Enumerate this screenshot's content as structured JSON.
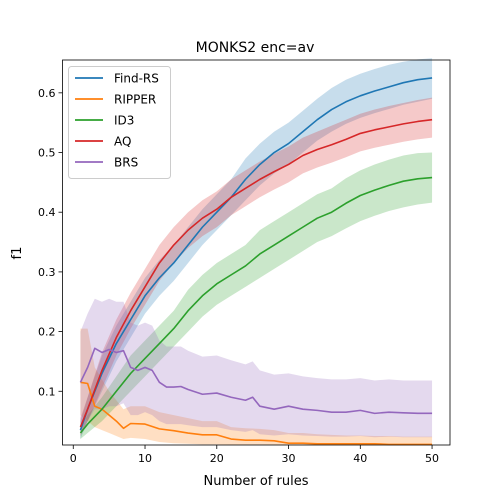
{
  "chart_data": {
    "type": "line",
    "title": "MONKS2 enc=av",
    "xlabel": "Number of rules",
    "ylabel": "f1",
    "xlim": [
      -1.5,
      52.5
    ],
    "ylim": [
      0.01,
      0.655
    ],
    "xticks": [
      0,
      10,
      20,
      30,
      40,
      50
    ],
    "yticks": [
      0.1,
      0.2,
      0.3,
      0.4,
      0.5,
      0.6
    ],
    "xtick_labels": [
      "0",
      "10",
      "20",
      "30",
      "40",
      "50"
    ],
    "ytick_labels": [
      "0.1",
      "0.2",
      "0.3",
      "0.4",
      "0.5",
      "0.6"
    ],
    "legend_position": "top-left",
    "grid": false,
    "band_opacity": 0.25,
    "series": [
      {
        "name": "Find-RS",
        "color": "#1f77b4",
        "x": [
          1,
          2,
          4,
          6,
          8,
          10,
          12,
          14,
          16,
          18,
          20,
          22,
          24,
          26,
          28,
          30,
          32,
          34,
          36,
          38,
          40,
          42,
          44,
          46,
          48,
          50
        ],
        "y": [
          0.035,
          0.07,
          0.13,
          0.18,
          0.22,
          0.26,
          0.29,
          0.315,
          0.345,
          0.375,
          0.4,
          0.425,
          0.455,
          0.48,
          0.5,
          0.515,
          0.535,
          0.555,
          0.572,
          0.585,
          0.595,
          0.603,
          0.61,
          0.617,
          0.622,
          0.625
        ],
        "lower": [
          0.02,
          0.05,
          0.1,
          0.15,
          0.19,
          0.23,
          0.26,
          0.285,
          0.315,
          0.345,
          0.37,
          0.395,
          0.42,
          0.445,
          0.465,
          0.48,
          0.5,
          0.52,
          0.535,
          0.548,
          0.558,
          0.566,
          0.573,
          0.58,
          0.585,
          0.59
        ],
        "upper": [
          0.05,
          0.09,
          0.16,
          0.21,
          0.25,
          0.29,
          0.32,
          0.345,
          0.375,
          0.405,
          0.43,
          0.455,
          0.49,
          0.515,
          0.535,
          0.55,
          0.57,
          0.59,
          0.608,
          0.622,
          0.632,
          0.64,
          0.647,
          0.652,
          0.656,
          0.658
        ]
      },
      {
        "name": "RIPPER",
        "color": "#ff7f0e",
        "x": [
          1,
          2,
          3,
          4,
          5,
          6,
          7,
          8,
          10,
          12,
          14,
          16,
          18,
          20,
          22,
          24,
          26,
          28,
          30,
          32,
          34,
          36,
          38,
          40,
          42,
          44,
          46,
          48,
          50
        ],
        "y": [
          0.115,
          0.113,
          0.075,
          0.07,
          0.06,
          0.05,
          0.038,
          0.046,
          0.045,
          0.037,
          0.034,
          0.03,
          0.027,
          0.027,
          0.02,
          0.018,
          0.018,
          0.017,
          0.013,
          0.013,
          0.012,
          0.012,
          0.012,
          0.012,
          0.012,
          0.011,
          0.011,
          0.011,
          0.011
        ],
        "lower": [
          0.06,
          0.05,
          0.04,
          0.035,
          0.03,
          0.025,
          0.02,
          0.022,
          0.02,
          0.015,
          0.013,
          0.012,
          0.011,
          0.011,
          0.01,
          0.01,
          0.01,
          0.01,
          0.01,
          0.01,
          0.01,
          0.01,
          0.01,
          0.01,
          0.01,
          0.01,
          0.01,
          0.01,
          0.01
        ],
        "upper": [
          0.205,
          0.205,
          0.14,
          0.12,
          0.1,
          0.085,
          0.07,
          0.075,
          0.075,
          0.065,
          0.06,
          0.055,
          0.05,
          0.05,
          0.04,
          0.038,
          0.037,
          0.035,
          0.03,
          0.03,
          0.028,
          0.027,
          0.026,
          0.026,
          0.025,
          0.025,
          0.024,
          0.024,
          0.024
        ]
      },
      {
        "name": "ID3",
        "color": "#2ca02c",
        "x": [
          1,
          2,
          4,
          6,
          8,
          10,
          12,
          14,
          16,
          18,
          20,
          22,
          24,
          26,
          28,
          30,
          32,
          34,
          36,
          38,
          40,
          42,
          44,
          46,
          48,
          50
        ],
        "y": [
          0.03,
          0.045,
          0.07,
          0.1,
          0.13,
          0.155,
          0.18,
          0.205,
          0.235,
          0.26,
          0.28,
          0.295,
          0.31,
          0.33,
          0.345,
          0.36,
          0.375,
          0.39,
          0.4,
          0.415,
          0.428,
          0.437,
          0.445,
          0.452,
          0.456,
          0.458
        ],
        "lower": [
          0.02,
          0.03,
          0.05,
          0.075,
          0.1,
          0.125,
          0.15,
          0.175,
          0.2,
          0.225,
          0.245,
          0.26,
          0.275,
          0.29,
          0.305,
          0.32,
          0.335,
          0.35,
          0.36,
          0.373,
          0.385,
          0.394,
          0.402,
          0.408,
          0.413,
          0.416
        ],
        "upper": [
          0.04,
          0.06,
          0.09,
          0.125,
          0.16,
          0.185,
          0.21,
          0.235,
          0.27,
          0.295,
          0.315,
          0.33,
          0.345,
          0.37,
          0.385,
          0.4,
          0.415,
          0.43,
          0.44,
          0.457,
          0.47,
          0.48,
          0.488,
          0.495,
          0.499,
          0.5
        ]
      },
      {
        "name": "AQ",
        "color": "#d62728",
        "x": [
          1,
          2,
          4,
          6,
          8,
          10,
          12,
          14,
          16,
          18,
          20,
          22,
          24,
          26,
          28,
          30,
          32,
          34,
          36,
          38,
          40,
          42,
          44,
          46,
          48,
          50
        ],
        "y": [
          0.04,
          0.07,
          0.135,
          0.19,
          0.235,
          0.275,
          0.315,
          0.345,
          0.37,
          0.39,
          0.405,
          0.425,
          0.44,
          0.455,
          0.468,
          0.48,
          0.495,
          0.505,
          0.513,
          0.522,
          0.532,
          0.538,
          0.543,
          0.548,
          0.552,
          0.555
        ],
        "lower": [
          0.025,
          0.05,
          0.105,
          0.16,
          0.205,
          0.245,
          0.285,
          0.315,
          0.34,
          0.36,
          0.375,
          0.395,
          0.41,
          0.425,
          0.438,
          0.45,
          0.465,
          0.475,
          0.483,
          0.492,
          0.502,
          0.508,
          0.513,
          0.518,
          0.522,
          0.525
        ],
        "upper": [
          0.055,
          0.09,
          0.165,
          0.22,
          0.265,
          0.305,
          0.345,
          0.375,
          0.4,
          0.42,
          0.435,
          0.455,
          0.47,
          0.485,
          0.498,
          0.51,
          0.525,
          0.535,
          0.545,
          0.555,
          0.565,
          0.572,
          0.578,
          0.583,
          0.588,
          0.592
        ]
      },
      {
        "name": "BRS",
        "color": "#9467bd",
        "x": [
          1,
          2,
          3,
          4,
          5,
          6,
          7,
          8,
          9,
          10,
          11,
          12,
          13,
          14,
          15,
          16,
          18,
          20,
          22,
          24,
          25,
          26,
          28,
          30,
          32,
          34,
          36,
          38,
          40,
          42,
          44,
          46,
          48,
          50
        ],
        "y": [
          0.115,
          0.14,
          0.172,
          0.165,
          0.17,
          0.165,
          0.168,
          0.14,
          0.135,
          0.14,
          0.135,
          0.115,
          0.107,
          0.107,
          0.108,
          0.103,
          0.095,
          0.097,
          0.09,
          0.085,
          0.09,
          0.075,
          0.07,
          0.075,
          0.07,
          0.068,
          0.065,
          0.065,
          0.068,
          0.063,
          0.065,
          0.064,
          0.063,
          0.063
        ],
        "lower": [
          0.03,
          0.05,
          0.07,
          0.07,
          0.075,
          0.075,
          0.08,
          0.06,
          0.06,
          0.065,
          0.06,
          0.05,
          0.045,
          0.045,
          0.045,
          0.043,
          0.04,
          0.04,
          0.035,
          0.032,
          0.035,
          0.028,
          0.026,
          0.028,
          0.026,
          0.025,
          0.024,
          0.024,
          0.025,
          0.023,
          0.024,
          0.023,
          0.023,
          0.023
        ],
        "upper": [
          0.2,
          0.23,
          0.255,
          0.25,
          0.255,
          0.25,
          0.25,
          0.215,
          0.21,
          0.215,
          0.21,
          0.185,
          0.175,
          0.175,
          0.175,
          0.168,
          0.158,
          0.16,
          0.152,
          0.145,
          0.15,
          0.135,
          0.128,
          0.13,
          0.125,
          0.122,
          0.12,
          0.12,
          0.122,
          0.118,
          0.12,
          0.118,
          0.118,
          0.118
        ]
      }
    ]
  }
}
